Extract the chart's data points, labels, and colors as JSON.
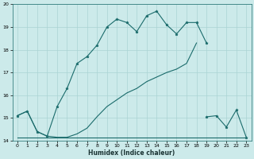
{
  "xlabel": "Humidex (Indice chaleur)",
  "xlim": [
    -0.5,
    23.5
  ],
  "ylim": [
    14,
    20
  ],
  "yticks": [
    14,
    15,
    16,
    17,
    18,
    19,
    20
  ],
  "xticks": [
    0,
    1,
    2,
    3,
    4,
    5,
    6,
    7,
    8,
    9,
    10,
    11,
    12,
    13,
    14,
    15,
    16,
    17,
    18,
    19,
    20,
    21,
    22,
    23
  ],
  "bg_color": "#cceaea",
  "grid_color": "#aad4d4",
  "line_color": "#1a6b6b",
  "line1_x": [
    0,
    1,
    2,
    3,
    4,
    5,
    6,
    7,
    8,
    9,
    10,
    11,
    12,
    13,
    14,
    15,
    16,
    17,
    18,
    19
  ],
  "line1_y": [
    15.1,
    15.3,
    14.4,
    14.2,
    15.5,
    16.3,
    17.4,
    17.7,
    18.2,
    19.0,
    19.35,
    19.2,
    18.8,
    19.5,
    19.7,
    19.1,
    18.7,
    19.2,
    19.2,
    18.3
  ],
  "line2_x": [
    0,
    1,
    2,
    3,
    4,
    5,
    6,
    7,
    8,
    9,
    10,
    11,
    12,
    13,
    14,
    15,
    16,
    17,
    18
  ],
  "line2_y": [
    15.1,
    15.3,
    14.4,
    14.2,
    14.15,
    14.15,
    14.3,
    14.55,
    15.05,
    15.5,
    15.8,
    16.1,
    16.3,
    16.6,
    16.8,
    17.0,
    17.15,
    17.4,
    18.3
  ],
  "line3_x": [
    0,
    1,
    2,
    3,
    4,
    5,
    6,
    7,
    8,
    9,
    10,
    11,
    12,
    13,
    14,
    15,
    16,
    17,
    18,
    19,
    20,
    21,
    22,
    23
  ],
  "line3_y": [
    14.15,
    14.15,
    14.15,
    14.15,
    14.15,
    14.15,
    14.15,
    14.15,
    14.15,
    14.15,
    14.15,
    14.15,
    14.15,
    14.15,
    14.15,
    14.15,
    14.15,
    14.15,
    14.15,
    14.15,
    14.15,
    14.15,
    14.15,
    14.15
  ],
  "line4_x": [
    19,
    20,
    21,
    22,
    23
  ],
  "line4_y": [
    15.05,
    15.1,
    14.6,
    15.35,
    14.15
  ]
}
